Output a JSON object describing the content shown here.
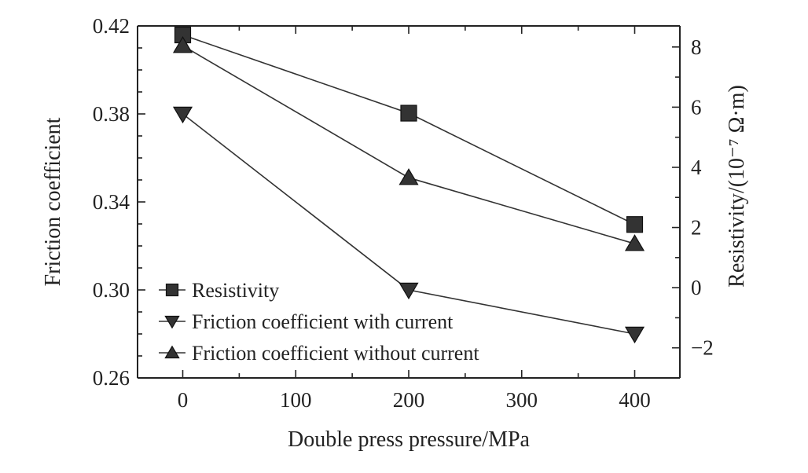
{
  "chart_data": {
    "type": "line",
    "x": [
      0,
      200,
      400
    ],
    "xlabel": "Double press pressure/MPa",
    "ylabel_left": "Friction coefficient",
    "ylabel_right": "Resistivity/(10⁻⁷ Ω·m)",
    "xlim": [
      -40,
      440
    ],
    "ylim_left": [
      0.26,
      0.42
    ],
    "ylim_right": [
      -3,
      8.7
    ],
    "x_ticks": [
      "0",
      "100",
      "200",
      "300",
      "400"
    ],
    "y_left_ticks": [
      "0.26",
      "0.30",
      "0.34",
      "0.38",
      "0.42"
    ],
    "y_right_ticks": [
      "−2",
      "0",
      "2",
      "4",
      "6",
      "8"
    ],
    "series": [
      {
        "name": "Resistivity",
        "axis": "right",
        "marker": "square",
        "values": [
          8.4,
          5.8,
          2.1
        ]
      },
      {
        "name": "Friction coefficient with current",
        "axis": "left",
        "marker": "triangle-down",
        "values": [
          0.38,
          0.3,
          0.28
        ]
      },
      {
        "name": "Friction coefficient without current",
        "axis": "left",
        "marker": "triangle-up",
        "values": [
          0.411,
          0.351,
          0.321
        ]
      }
    ],
    "legend_position": "bottom-left",
    "grid": false
  }
}
